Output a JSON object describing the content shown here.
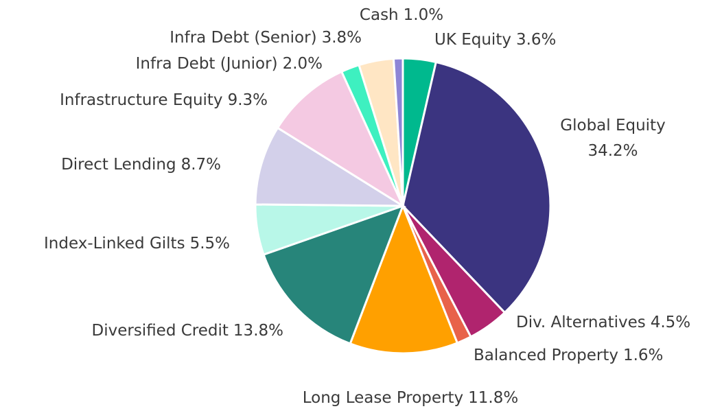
{
  "chart_data": {
    "type": "pie",
    "categories": [
      "UK Equity",
      "Global Equity",
      "Div. Alternatives",
      "Balanced Property",
      "Long Lease Property",
      "Diversified Credit",
      "Index-Linked Gilts",
      "Direct Lending",
      "Infrastructure Equity",
      "Infra Debt (Junior)",
      "Infra Debt (Senior)",
      "Cash"
    ],
    "values": [
      3.6,
      34.2,
      4.5,
      1.6,
      11.8,
      13.8,
      5.5,
      8.7,
      9.3,
      2.0,
      3.8,
      1.0
    ],
    "value_labels": [
      "3.6%",
      "34.2%",
      "4.5%",
      "1.6%",
      "11.8%",
      "13.8%",
      "5.5%",
      "8.7%",
      "9.3%",
      "2.0%",
      "3.8%",
      "1.0%"
    ],
    "colors": [
      "#00b98e",
      "#3b3480",
      "#b0246e",
      "#e8624a",
      "#ffa000",
      "#27857a",
      "#b8f7e8",
      "#d3d0ea",
      "#f4c9e2",
      "#3ef0c0",
      "#ffe6c4",
      "#8e85d6"
    ]
  }
}
